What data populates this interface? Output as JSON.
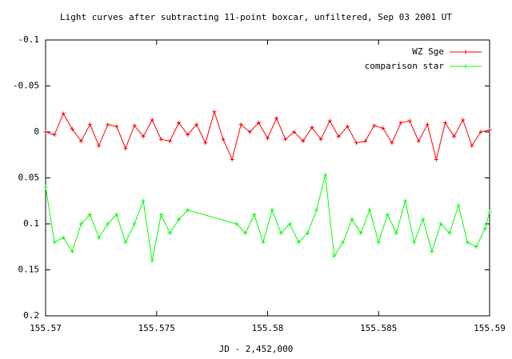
{
  "chart_data": {
    "type": "line",
    "title": "Light curves after subtracting 11-point boxcar, unfiltered, Sep 03 2001 UT",
    "xlabel": "JD - 2,452,000",
    "xlim": [
      155.57,
      155.59
    ],
    "xticks": [
      155.57,
      155.575,
      155.58,
      155.585,
      155.59
    ],
    "ylim": [
      0.2,
      -0.1
    ],
    "yticks": [
      -0.1,
      -0.05,
      0,
      0.05,
      0.1,
      0.15,
      0.2
    ],
    "legend": "top-right",
    "series": [
      {
        "name": "WZ Sge",
        "color": "#ff0000",
        "x": [
          155.57,
          155.5704,
          155.5708,
          155.5712,
          155.5716,
          155.572,
          155.5724,
          155.5728,
          155.5732,
          155.5736,
          155.574,
          155.5744,
          155.5748,
          155.5752,
          155.5756,
          155.576,
          155.5764,
          155.5768,
          155.5772,
          155.5776,
          155.578,
          155.5784,
          155.5788,
          155.5792,
          155.5796,
          155.58,
          155.5804,
          155.5808,
          155.5812,
          155.5816,
          155.582,
          155.5824,
          155.5828,
          155.5832,
          155.5836,
          155.584,
          155.5844,
          155.5848,
          155.5852,
          155.5856,
          155.586,
          155.5864,
          155.5868,
          155.5872,
          155.5876,
          155.588,
          155.5884,
          155.5888,
          155.5892,
          155.5896,
          155.59
        ],
        "values": [
          0.0,
          0.003,
          -0.02,
          -0.003,
          0.01,
          -0.008,
          0.015,
          -0.008,
          -0.006,
          0.018,
          -0.007,
          0.005,
          -0.013,
          0.008,
          0.01,
          -0.01,
          0.003,
          -0.008,
          0.012,
          -0.022,
          0.008,
          0.03,
          -0.008,
          0.0,
          -0.01,
          0.007,
          -0.015,
          0.008,
          0.0,
          0.01,
          -0.005,
          0.008,
          -0.012,
          0.005,
          -0.006,
          0.012,
          0.01,
          -0.007,
          -0.004,
          0.012,
          -0.01,
          -0.012,
          0.01,
          -0.008,
          0.03,
          -0.01,
          0.005,
          -0.013,
          0.015,
          0.0,
          -0.002
        ]
      },
      {
        "name": "comparison star",
        "color": "#00ff00",
        "x": [
          155.57,
          155.5704,
          155.5708,
          155.5712,
          155.5716,
          155.572,
          155.5724,
          155.5728,
          155.5732,
          155.5736,
          155.574,
          155.5744,
          155.5748,
          155.5752,
          155.5756,
          155.576,
          155.5764,
          155.5786,
          155.579,
          155.5794,
          155.5798,
          155.5802,
          155.5806,
          155.581,
          155.5814,
          155.5818,
          155.5822,
          155.5826,
          155.583,
          155.5834,
          155.5838,
          155.5842,
          155.5846,
          155.585,
          155.5854,
          155.5858,
          155.5862,
          155.5866,
          155.587,
          155.5874,
          155.5878,
          155.5882,
          155.5886,
          155.589,
          155.5894,
          155.5898,
          155.59
        ],
        "values": [
          0.06,
          0.12,
          0.115,
          0.13,
          0.1,
          0.09,
          0.115,
          0.1,
          0.09,
          0.12,
          0.1,
          0.075,
          0.14,
          0.09,
          0.11,
          0.095,
          0.085,
          0.1,
          0.11,
          0.09,
          0.12,
          0.085,
          0.11,
          0.1,
          0.12,
          0.11,
          0.085,
          0.047,
          0.135,
          0.12,
          0.095,
          0.11,
          0.085,
          0.12,
          0.09,
          0.11,
          0.075,
          0.12,
          0.095,
          0.13,
          0.1,
          0.11,
          0.08,
          0.12,
          0.125,
          0.105,
          0.087
        ]
      }
    ]
  }
}
